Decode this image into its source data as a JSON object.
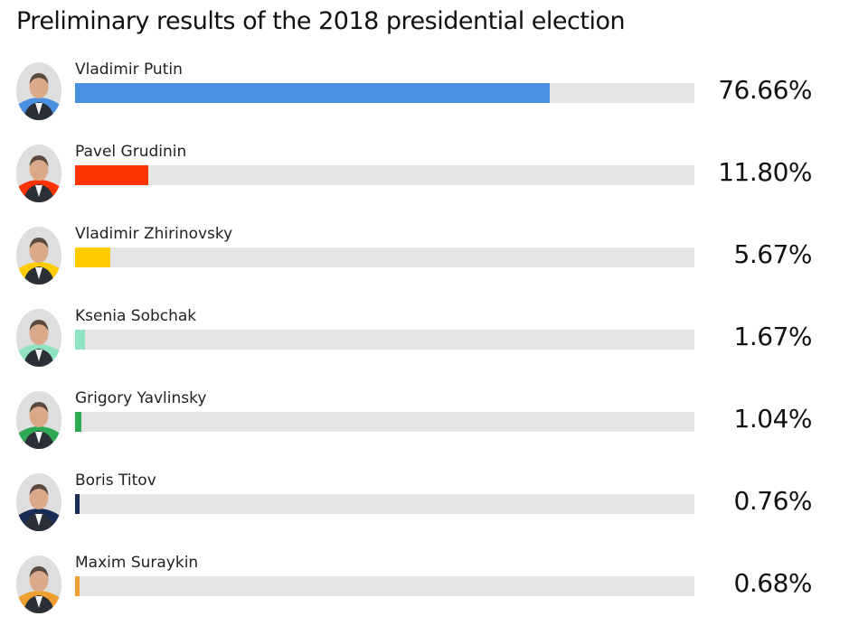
{
  "chart_data": {
    "type": "bar",
    "title": "Preliminary results of the 2018 presidential election",
    "orientation": "horizontal",
    "value_unit": "%",
    "xlim": [
      0,
      100
    ],
    "categories": [
      "Vladimir Putin",
      "Pavel Grudinin",
      "Vladimir Zhirinovsky",
      "Ksenia Sobchak",
      "Grigory Yavlinsky",
      "Boris Titov",
      "Maxim Suraykin"
    ],
    "values": [
      76.66,
      11.8,
      5.67,
      1.67,
      1.04,
      0.76,
      0.68
    ],
    "value_labels": [
      "76.66%",
      "11.80%",
      "5.67%",
      "1.67%",
      "1.04%",
      "0.76%",
      "0.68%"
    ],
    "colors": [
      "#4a90e2",
      "#ff3300",
      "#ffcc00",
      "#8fe3c0",
      "#2eaa55",
      "#1a2b55",
      "#f0a030"
    ],
    "track_color": "#e5e5e5",
    "grid": false,
    "legend": "none"
  },
  "portraits": [
    {
      "icon": "portrait-icon",
      "ring_color": "#4a90e2"
    },
    {
      "icon": "portrait-icon",
      "ring_color": "#ff3300"
    },
    {
      "icon": "portrait-icon",
      "ring_color": "#ffcc00"
    },
    {
      "icon": "portrait-icon",
      "ring_color": "#8fe3c0"
    },
    {
      "icon": "portrait-icon",
      "ring_color": "#2eaa55"
    },
    {
      "icon": "portrait-icon",
      "ring_color": "#1a2b55"
    },
    {
      "icon": "portrait-icon",
      "ring_color": "#f0a030"
    }
  ]
}
